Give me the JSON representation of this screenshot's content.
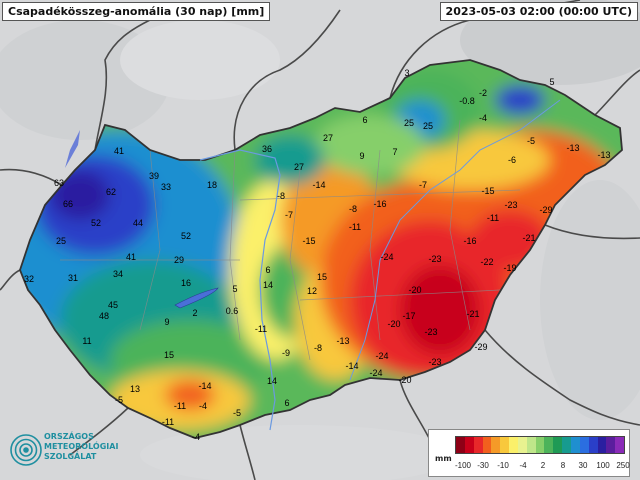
{
  "header": {
    "title": "Csapadékösszeg-anomália (30 nap) [mm]",
    "timestamp": "2023-05-03 02:00 (00:00 UTC)"
  },
  "map_values": [
    {
      "id": "v01",
      "text": "3"
    },
    {
      "id": "v02",
      "text": "5"
    },
    {
      "id": "v03",
      "text": "-0.8"
    },
    {
      "id": "v04",
      "text": "-2"
    },
    {
      "id": "v05",
      "text": "-4"
    },
    {
      "id": "v06",
      "text": "25"
    },
    {
      "id": "v07",
      "text": "25"
    },
    {
      "id": "v08",
      "text": "6"
    },
    {
      "id": "v09",
      "text": "27"
    },
    {
      "id": "v10",
      "text": "36"
    },
    {
      "id": "v11",
      "text": "9"
    },
    {
      "id": "v12",
      "text": "7"
    },
    {
      "id": "v13",
      "text": "-5"
    },
    {
      "id": "v14",
      "text": "-13"
    },
    {
      "id": "v15",
      "text": "-13"
    },
    {
      "id": "v16",
      "text": "-6"
    },
    {
      "id": "v17",
      "text": "41"
    },
    {
      "id": "v18",
      "text": "63"
    },
    {
      "id": "v19",
      "text": "39"
    },
    {
      "id": "v20",
      "text": "33"
    },
    {
      "id": "v21",
      "text": "18"
    },
    {
      "id": "v22",
      "text": "27"
    },
    {
      "id": "v23",
      "text": "-14"
    },
    {
      "id": "v24",
      "text": "-7"
    },
    {
      "id": "v25",
      "text": "62"
    },
    {
      "id": "v26",
      "text": "66"
    },
    {
      "id": "v27",
      "text": "-8"
    },
    {
      "id": "v28",
      "text": "-15"
    },
    {
      "id": "v29",
      "text": "-16"
    },
    {
      "id": "v30",
      "text": "-23"
    },
    {
      "id": "v31",
      "text": "-29"
    },
    {
      "id": "v32",
      "text": "52"
    },
    {
      "id": "v33",
      "text": "44"
    },
    {
      "id": "v34",
      "text": "-7"
    },
    {
      "id": "v35",
      "text": "-8"
    },
    {
      "id": "v36",
      "text": "-11"
    },
    {
      "id": "v37",
      "text": "-11"
    },
    {
      "id": "v38",
      "text": "52"
    },
    {
      "id": "v39",
      "text": "25"
    },
    {
      "id": "v40",
      "text": "-15"
    },
    {
      "id": "v41",
      "text": "-16"
    },
    {
      "id": "v42",
      "text": "-21"
    },
    {
      "id": "v43",
      "text": "41"
    },
    {
      "id": "v44",
      "text": "29"
    },
    {
      "id": "v45",
      "text": "-24"
    },
    {
      "id": "v46",
      "text": "-23"
    },
    {
      "id": "v47",
      "text": "-22"
    },
    {
      "id": "v48",
      "text": "-19"
    },
    {
      "id": "v49",
      "text": "6"
    },
    {
      "id": "v50",
      "text": "32"
    },
    {
      "id": "v51",
      "text": "31"
    },
    {
      "id": "v52",
      "text": "34"
    },
    {
      "id": "v53",
      "text": "16"
    },
    {
      "id": "v54",
      "text": "5"
    },
    {
      "id": "v55",
      "text": "14"
    },
    {
      "id": "v56",
      "text": "15"
    },
    {
      "id": "v57",
      "text": "12"
    },
    {
      "id": "v58",
      "text": "-20"
    },
    {
      "id": "v59",
      "text": "45"
    },
    {
      "id": "v60",
      "text": "48"
    },
    {
      "id": "v61",
      "text": "9"
    },
    {
      "id": "v62",
      "text": "2"
    },
    {
      "id": "v63",
      "text": "0.6"
    },
    {
      "id": "v64",
      "text": "-21"
    },
    {
      "id": "v65",
      "text": "-17"
    },
    {
      "id": "v66",
      "text": "-20"
    },
    {
      "id": "v67",
      "text": "-11"
    },
    {
      "id": "v68",
      "text": "-23"
    },
    {
      "id": "v69",
      "text": "11"
    },
    {
      "id": "v70",
      "text": "-13"
    },
    {
      "id": "v71",
      "text": "-9"
    },
    {
      "id": "v72",
      "text": "-8"
    },
    {
      "id": "v73",
      "text": "-29"
    },
    {
      "id": "v74",
      "text": "15"
    },
    {
      "id": "v75",
      "text": "-24"
    },
    {
      "id": "v76",
      "text": "-14"
    },
    {
      "id": "v77",
      "text": "-23"
    },
    {
      "id": "v78",
      "text": "-24"
    },
    {
      "id": "v79",
      "text": "13"
    },
    {
      "id": "v80",
      "text": "-14"
    },
    {
      "id": "v81",
      "text": "14"
    },
    {
      "id": "v82",
      "text": "-20"
    },
    {
      "id": "v83",
      "text": "-5"
    },
    {
      "id": "v84",
      "text": "-11"
    },
    {
      "id": "v85",
      "text": "-4"
    },
    {
      "id": "v86",
      "text": "-5"
    },
    {
      "id": "v87",
      "text": "6"
    },
    {
      "id": "v88",
      "text": "-11"
    },
    {
      "id": "v89",
      "text": "-4"
    }
  ],
  "legend": {
    "unit": "mm",
    "ticks": [
      "-100",
      "-30",
      "-10",
      "-4",
      "2",
      "8",
      "30",
      "100",
      "250"
    ],
    "colors": [
      "#8e0016",
      "#c8001a",
      "#e8282a",
      "#f2601e",
      "#f59a28",
      "#f8c83c",
      "#fbf06a",
      "#e8f290",
      "#bfe68a",
      "#86cf6a",
      "#4cb35a",
      "#1f9a55",
      "#179b8f",
      "#1f8fd0",
      "#2b6ee0",
      "#2a3fc8",
      "#2a1fa0",
      "#5a1e9e",
      "#8a2bb8"
    ]
  },
  "logo": {
    "lines": [
      "ORSZÁGOS",
      "METEOROLÓGIAI",
      "SZOLGÁLAT"
    ],
    "color": "#1f8fa0"
  }
}
